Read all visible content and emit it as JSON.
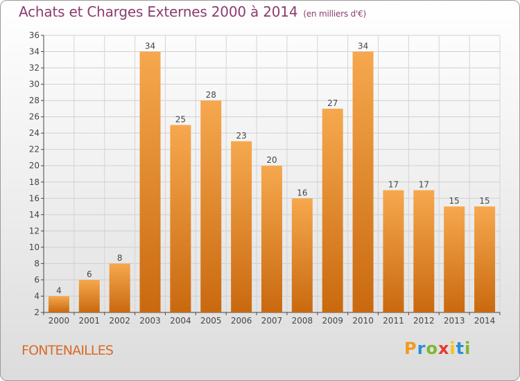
{
  "title": "Achats et Charges Externes 2000 à 2014",
  "subtitle": "(en milliers d'€)",
  "commune": "FONTENAILLES",
  "logo": {
    "letters": [
      "P",
      "r",
      "o",
      "x",
      "i",
      "t",
      "i"
    ],
    "colors": [
      "#f29a1f",
      "#2a8fd6",
      "#7cb82f",
      "#e23b2f",
      "#f2c21f",
      "#2a8fd6",
      "#7cb82f"
    ]
  },
  "colors": {
    "bar_light": "#f6a84e",
    "bar_dark": "#c9690f",
    "title": "#8a3c6f",
    "commune": "#d96a2a"
  },
  "chart_data": {
    "type": "bar",
    "title": "Achats et Charges Externes 2000 à 2014",
    "subtitle": "(en milliers d'€)",
    "categories": [
      "2000",
      "2001",
      "2002",
      "2003",
      "2004",
      "2005",
      "2006",
      "2007",
      "2008",
      "2009",
      "2010",
      "2011",
      "2012",
      "2013",
      "2014"
    ],
    "values": [
      4,
      6,
      8,
      34,
      25,
      28,
      23,
      20,
      16,
      27,
      34,
      17,
      17,
      15,
      15
    ],
    "ylim": [
      2,
      36
    ],
    "yticks": [
      2,
      4,
      6,
      8,
      10,
      12,
      14,
      16,
      18,
      20,
      22,
      24,
      26,
      28,
      30,
      32,
      34,
      36
    ],
    "grid": true
  }
}
